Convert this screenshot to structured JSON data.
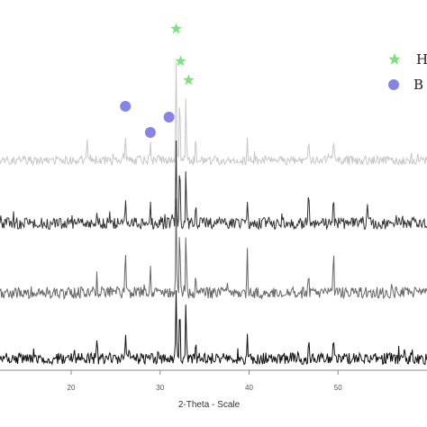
{
  "chart_data": {
    "type": "line",
    "xlabel": "2-Theta - Scale",
    "xlim": [
      12,
      60
    ],
    "x_ticks": [
      "20",
      "30",
      "40",
      "50"
    ],
    "legend": [
      {
        "label": "H",
        "marker": "star",
        "color": "#7ee07e"
      },
      {
        "label": "B",
        "marker": "circle",
        "color": "#8585e8"
      }
    ],
    "markers": [
      {
        "type": "circle",
        "x": 26.1,
        "color": "#8585e8"
      },
      {
        "type": "circle",
        "x": 28.9,
        "color": "#8585e8"
      },
      {
        "type": "circle",
        "x": 31.0,
        "color": "#8585e8"
      },
      {
        "type": "star",
        "x": 31.8,
        "color": "#7ee07e"
      },
      {
        "type": "star",
        "x": 32.3,
        "color": "#7ee07e"
      },
      {
        "type": "star",
        "x": 33.2,
        "color": "#7ee07e"
      }
    ],
    "series": [
      {
        "color": "#c8c8c8",
        "peaks": [
          [
            21.8,
            0.3
          ],
          [
            26.1,
            0.4
          ],
          [
            28.9,
            0.3
          ],
          [
            31.8,
            1.25
          ],
          [
            32.2,
            0.95
          ],
          [
            32.9,
            0.85
          ],
          [
            34.0,
            0.35
          ],
          [
            39.8,
            0.3
          ],
          [
            46.7,
            0.3
          ],
          [
            49.5,
            0.3
          ]
        ]
      },
      {
        "color": "#333333",
        "peaks": [
          [
            22.9,
            0.2
          ],
          [
            26.1,
            0.4
          ],
          [
            28.9,
            0.25
          ],
          [
            31.8,
            1.0
          ],
          [
            32.2,
            0.85
          ],
          [
            32.9,
            0.7
          ],
          [
            34.0,
            0.25
          ],
          [
            39.8,
            0.3
          ],
          [
            46.7,
            0.45
          ],
          [
            49.5,
            0.4
          ],
          [
            53.3,
            0.2
          ]
        ]
      },
      {
        "color": "#666666",
        "peaks": [
          [
            22.9,
            0.2
          ],
          [
            26.1,
            0.55
          ],
          [
            28.9,
            0.35
          ],
          [
            31.8,
            1.25
          ],
          [
            32.2,
            0.9
          ],
          [
            32.9,
            0.8
          ],
          [
            34.0,
            0.35
          ],
          [
            39.8,
            0.45
          ],
          [
            46.7,
            0.3
          ],
          [
            49.5,
            0.5
          ]
        ]
      },
      {
        "color": "#111111",
        "peaks": [
          [
            22.9,
            0.25
          ],
          [
            26.1,
            0.3
          ],
          [
            31.8,
            0.9
          ],
          [
            32.2,
            0.75
          ],
          [
            32.9,
            0.75
          ],
          [
            34.0,
            0.25
          ],
          [
            39.8,
            0.25
          ],
          [
            46.7,
            0.25
          ],
          [
            49.5,
            0.3
          ]
        ]
      }
    ]
  }
}
